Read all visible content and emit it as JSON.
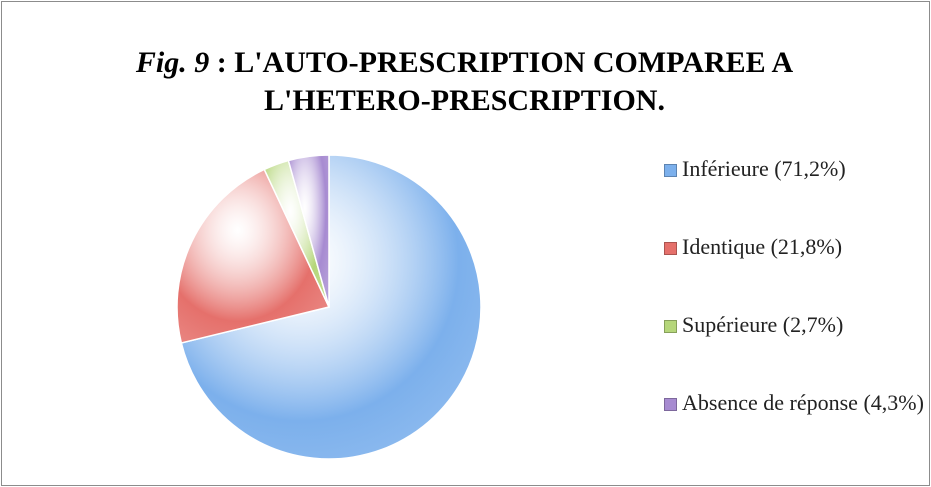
{
  "chart_data": {
    "type": "pie",
    "title": {
      "italic": "Fig. 9",
      "text": ": L'AUTO-PRESCRIPTION COMPAREE A L'HETERO-PRESCRIPTION."
    },
    "categories": [
      "Inférieure",
      "Identique",
      "Supérieure",
      "Absence de réponse"
    ],
    "values": [
      71.2,
      21.8,
      2.7,
      4.3
    ],
    "value_labels": [
      "(71,2%)",
      "(21,8%)",
      "(2,7%)",
      "(4,3%)"
    ],
    "colors": [
      "#7cb0ec",
      "#e5706b",
      "#b5d67a",
      "#a78bd1"
    ],
    "legend": "right"
  }
}
